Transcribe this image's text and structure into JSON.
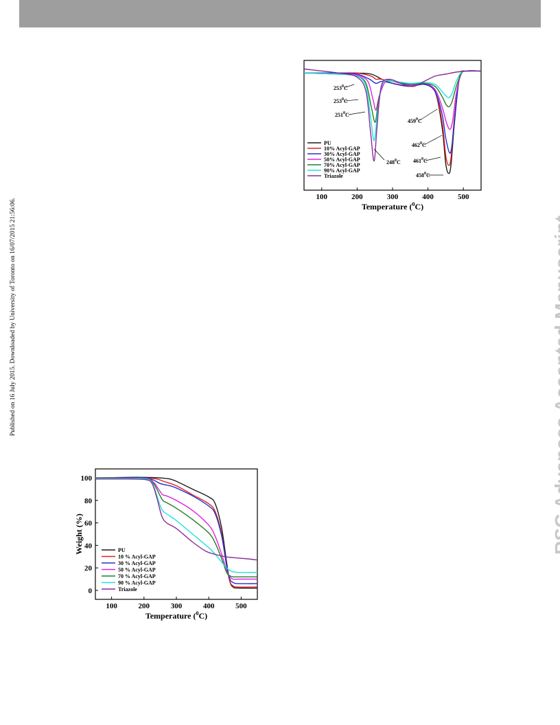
{
  "header": {},
  "side_note": "Published on 16 July 2015. Downloaded by University of Toronto on 16/07/2015 21:56:06.",
  "watermark": "RSC Advances Accepted Manuscript",
  "chart_data": [
    {
      "id": "dtg",
      "type": "line",
      "xlabel": "Temperature (°C)",
      "xlabel_parts": [
        "Temperature (",
        "0",
        "C)"
      ],
      "ylabel": "",
      "xlim": [
        50,
        550
      ],
      "ylim": [
        -1,
        0.02
      ],
      "yticks_shown": false,
      "xticks": [
        100,
        200,
        300,
        400,
        500
      ],
      "legend_position": "bottom-left",
      "series": [
        {
          "name": "PU",
          "color": "#1a1a1a",
          "x": [
            50,
            150,
            200,
            240,
            270,
            300,
            350,
            390,
            420,
            440,
            450,
            458,
            465,
            475,
            490,
            510,
            550
          ],
          "y": [
            -0.02,
            -0.02,
            -0.02,
            -0.03,
            -0.08,
            -0.12,
            -0.15,
            -0.13,
            -0.2,
            -0.55,
            -0.9,
            -1.0,
            -0.92,
            -0.5,
            -0.05,
            0.0,
            0.0
          ]
        },
        {
          "name": "10% Acyl-GAP",
          "color": "#e02020",
          "x": [
            50,
            150,
            200,
            240,
            253,
            270,
            300,
            350,
            390,
            420,
            440,
            450,
            458,
            465,
            475,
            490,
            510,
            550
          ],
          "y": [
            -0.02,
            -0.02,
            -0.02,
            -0.05,
            -0.08,
            -0.08,
            -0.12,
            -0.15,
            -0.13,
            -0.2,
            -0.5,
            -0.82,
            -0.92,
            -0.85,
            -0.45,
            -0.05,
            0.0,
            0.0
          ]
        },
        {
          "name": "30% Acyl-GAP",
          "color": "#2030d0",
          "x": [
            50,
            150,
            200,
            235,
            253,
            270,
            300,
            350,
            390,
            420,
            440,
            450,
            461,
            468,
            478,
            490,
            510,
            550
          ],
          "y": [
            -0.02,
            -0.02,
            -0.03,
            -0.08,
            -0.12,
            -0.1,
            -0.12,
            -0.15,
            -0.13,
            -0.2,
            -0.42,
            -0.65,
            -0.8,
            -0.72,
            -0.38,
            -0.05,
            0.0,
            0.0
          ]
        },
        {
          "name": "50% Acyl-GAP",
          "color": "#e020e0",
          "x": [
            50,
            150,
            200,
            230,
            245,
            253,
            262,
            280,
            300,
            350,
            390,
            420,
            440,
            452,
            462,
            470,
            480,
            495,
            510,
            550
          ],
          "y": [
            -0.02,
            -0.03,
            -0.04,
            -0.1,
            -0.28,
            -0.38,
            -0.25,
            -0.1,
            -0.1,
            -0.14,
            -0.12,
            -0.18,
            -0.35,
            -0.5,
            -0.57,
            -0.48,
            -0.22,
            -0.02,
            0.0,
            0.0
          ]
        },
        {
          "name": "70% Acyl-GAP",
          "color": "#208020",
          "x": [
            50,
            150,
            200,
            225,
            240,
            251,
            260,
            275,
            300,
            350,
            390,
            420,
            440,
            450,
            459,
            468,
            480,
            495,
            510,
            550
          ],
          "y": [
            -0.02,
            -0.03,
            -0.05,
            -0.12,
            -0.35,
            -0.5,
            -0.3,
            -0.1,
            -0.1,
            -0.13,
            -0.12,
            -0.15,
            -0.25,
            -0.32,
            -0.35,
            -0.3,
            -0.15,
            -0.02,
            0.0,
            0.0
          ]
        },
        {
          "name": "90% Acyl-GAP",
          "color": "#20e0e0",
          "x": [
            50,
            150,
            200,
            225,
            238,
            248,
            258,
            272,
            300,
            350,
            390,
            420,
            440,
            450,
            459,
            468,
            480,
            495,
            510,
            550
          ],
          "y": [
            -0.02,
            -0.03,
            -0.05,
            -0.15,
            -0.45,
            -0.68,
            -0.4,
            -0.12,
            -0.1,
            -0.12,
            -0.11,
            -0.13,
            -0.2,
            -0.24,
            -0.26,
            -0.22,
            -0.1,
            -0.01,
            0.0,
            0.0
          ]
        },
        {
          "name": "Triazole",
          "color": "#8a2a9a",
          "x": [
            50,
            150,
            200,
            225,
            238,
            248,
            256,
            268,
            290,
            330,
            360,
            390,
            420,
            450,
            480,
            510,
            550
          ],
          "y": [
            0.02,
            -0.02,
            -0.06,
            -0.2,
            -0.6,
            -0.88,
            -0.55,
            -0.15,
            -0.08,
            -0.13,
            -0.15,
            -0.1,
            -0.05,
            -0.03,
            -0.01,
            0.0,
            0.0
          ]
        }
      ],
      "annotations": [
        {
          "text": "253",
          "sup": "0",
          "unit": "C"
        },
        {
          "text": "253",
          "sup": "0",
          "unit": "C"
        },
        {
          "text": "251",
          "sup": "0",
          "unit": "C"
        },
        {
          "text": "248",
          "sup": "0",
          "unit": "C"
        },
        {
          "text": "459",
          "sup": "0",
          "unit": "C"
        },
        {
          "text": "462",
          "sup": "0",
          "unit": "C"
        },
        {
          "text": "461",
          "sup": "0",
          "unit": "C"
        },
        {
          "text": "458",
          "sup": "0",
          "unit": "C"
        }
      ]
    },
    {
      "id": "tga",
      "type": "line",
      "xlabel": "Temperature (°C)",
      "xlabel_parts": [
        "Temperature (",
        "0",
        "C)"
      ],
      "ylabel": "Weight (%)",
      "xlim": [
        50,
        550
      ],
      "ylim": [
        -8,
        108
      ],
      "xticks": [
        100,
        200,
        300,
        400,
        500
      ],
      "yticks": [
        0,
        20,
        40,
        60,
        80,
        100
      ],
      "legend_position": "bottom-left",
      "series": [
        {
          "name": "PU",
          "color": "#1a1a1a",
          "x": [
            50,
            150,
            200,
            250,
            280,
            300,
            350,
            400,
            420,
            440,
            455,
            465,
            475,
            490,
            550
          ],
          "y": [
            100,
            100.5,
            100.5,
            100,
            99,
            97,
            90,
            83,
            77,
            55,
            25,
            8,
            3,
            2,
            2
          ]
        },
        {
          "name": "10 % Acyl-GAP",
          "color": "#e02020",
          "x": [
            50,
            150,
            200,
            240,
            260,
            300,
            350,
            400,
            420,
            440,
            455,
            465,
            475,
            490,
            550
          ],
          "y": [
            100,
            100,
            100,
            99,
            97,
            93,
            85,
            77,
            70,
            50,
            22,
            8,
            4,
            3,
            3
          ]
        },
        {
          "name": "30 % Acyl-GAP",
          "color": "#2030d0",
          "x": [
            50,
            150,
            200,
            230,
            250,
            280,
            300,
            350,
            400,
            420,
            440,
            455,
            465,
            475,
            490,
            550
          ],
          "y": [
            100,
            100,
            100,
            98,
            95,
            93,
            91,
            84,
            75,
            68,
            48,
            22,
            10,
            7,
            6,
            6
          ]
        },
        {
          "name": "50 % Acyl-GAP",
          "color": "#e020e0",
          "x": [
            50,
            150,
            210,
            230,
            245,
            258,
            270,
            300,
            350,
            400,
            420,
            440,
            455,
            465,
            475,
            490,
            550
          ],
          "y": [
            100,
            99.5,
            99,
            96,
            90,
            85,
            84,
            80,
            71,
            58,
            48,
            32,
            18,
            12,
            10,
            10,
            10
          ]
        },
        {
          "name": "70 % Acyl-GAP",
          "color": "#208020",
          "x": [
            50,
            150,
            210,
            230,
            245,
            258,
            270,
            300,
            350,
            400,
            420,
            440,
            455,
            465,
            475,
            490,
            550
          ],
          "y": [
            100,
            99.5,
            99,
            95,
            87,
            80,
            78,
            73,
            63,
            51,
            42,
            28,
            16,
            13,
            12,
            12,
            12
          ]
        },
        {
          "name": "90 % Acyl-GAP",
          "color": "#20e0e0",
          "x": [
            50,
            150,
            210,
            228,
            240,
            255,
            270,
            300,
            350,
            400,
            420,
            440,
            455,
            470,
            490,
            550
          ],
          "y": [
            99.5,
            99.5,
            99,
            94,
            84,
            72,
            68,
            62,
            50,
            38,
            32,
            25,
            20,
            17,
            16,
            16
          ]
        },
        {
          "name": "Triazole",
          "color": "#8a2a9a",
          "x": [
            50,
            150,
            205,
            225,
            240,
            255,
            270,
            300,
            350,
            390,
            420,
            450,
            480,
            520,
            550
          ],
          "y": [
            99,
            99,
            98.5,
            95,
            82,
            66,
            60,
            55,
            43,
            35,
            32,
            30,
            29,
            28,
            27
          ]
        }
      ]
    }
  ]
}
